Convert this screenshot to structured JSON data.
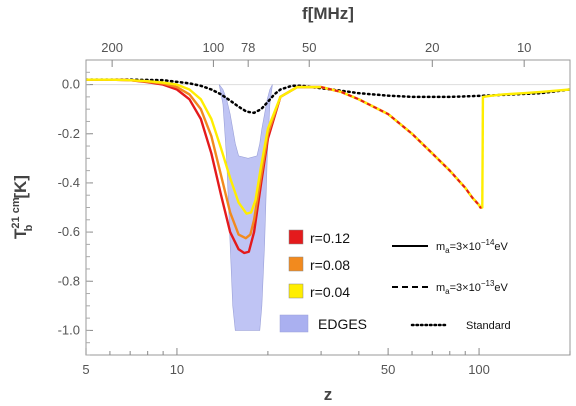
{
  "chart_data": {
    "type": "line",
    "x_scale": "log",
    "xlim": [
      5,
      200
    ],
    "ylim": [
      -1.1,
      0.1
    ],
    "xlabel": "z",
    "ylabel": "T_b^21 cm [K]",
    "ylabel_parts": {
      "base": "T",
      "sub": "b",
      "sup": "21 cm",
      "unit": "[K]"
    },
    "top_axis_label": "f[MHz]",
    "x_ticks": [
      5,
      10,
      50,
      100
    ],
    "x_tick_labels": [
      "5",
      "10",
      "50",
      "100"
    ],
    "y_ticks": [
      0.0,
      -0.2,
      -0.4,
      -0.6,
      -0.8,
      -1.0
    ],
    "y_tick_labels": [
      "0.0",
      "-0.2",
      "-0.4",
      "-0.6",
      "-0.8",
      "-1.0"
    ],
    "top_ticks": [
      200,
      100,
      78,
      50,
      20,
      10
    ],
    "top_tick_labels": [
      "200",
      "100",
      "78",
      "50",
      "20",
      "10"
    ],
    "edges_band": {
      "name": "EDGES",
      "color": "#aab0f0",
      "z": [
        13.8,
        14.2,
        14.6,
        15.0,
        15.3,
        15.6,
        16.0,
        17.2,
        18.4,
        18.8,
        19.1,
        19.5,
        19.9,
        20.3,
        20.7
      ],
      "lower": [
        0.0,
        -0.08,
        -0.3,
        -0.65,
        -0.9,
        -1.0,
        -1.0,
        -1.0,
        -1.0,
        -1.0,
        -0.9,
        -0.65,
        -0.3,
        -0.08,
        0.0
      ],
      "upper": [
        0.0,
        -0.02,
        -0.06,
        -0.12,
        -0.18,
        -0.24,
        -0.29,
        -0.3,
        -0.29,
        -0.24,
        -0.18,
        -0.12,
        -0.06,
        -0.02,
        0.0
      ]
    },
    "series": [
      {
        "name": "r=0.12",
        "color": "#e41a1c",
        "style": "solid",
        "z": [
          5,
          6,
          7,
          8,
          9,
          10,
          11,
          12,
          13,
          14,
          15,
          16,
          16.7,
          17.3,
          18,
          19,
          20,
          22,
          25,
          30,
          35,
          40,
          50,
          60,
          70,
          80,
          90,
          95,
          100,
          101,
          102
        ],
        "y": [
          0.02,
          0.02,
          0.018,
          0.01,
          0.0,
          -0.02,
          -0.06,
          -0.14,
          -0.28,
          -0.45,
          -0.6,
          -0.67,
          -0.685,
          -0.68,
          -0.6,
          -0.4,
          -0.22,
          -0.05,
          -0.01,
          -0.01,
          -0.03,
          -0.06,
          -0.12,
          -0.2,
          -0.28,
          -0.35,
          -0.42,
          -0.46,
          -0.49,
          -0.5,
          -0.5
        ]
      },
      {
        "name": "r=0.08",
        "color": "#f28a1e",
        "style": "solid",
        "z": [
          5,
          6,
          7,
          8,
          9,
          10,
          11,
          12,
          13,
          14,
          15,
          16,
          16.9,
          17.5,
          18,
          19,
          20,
          22,
          25,
          30
        ],
        "y": [
          0.02,
          0.02,
          0.018,
          0.012,
          0.004,
          -0.01,
          -0.04,
          -0.1,
          -0.21,
          -0.37,
          -0.52,
          -0.61,
          -0.625,
          -0.61,
          -0.55,
          -0.37,
          -0.2,
          -0.05,
          -0.01,
          -0.01
        ]
      },
      {
        "name": "r=0.04",
        "color": "#ffee00",
        "style": "solid",
        "z": [
          5,
          6,
          7,
          8,
          9,
          10,
          11,
          12,
          13,
          14,
          15,
          16,
          17,
          17.6,
          18.2,
          19,
          20,
          22,
          25,
          30,
          35,
          40,
          50,
          60,
          70,
          80,
          90,
          95,
          100,
          101,
          102,
          102.5,
          103,
          110,
          120,
          140,
          160,
          200
        ],
        "y": [
          0.02,
          0.02,
          0.018,
          0.014,
          0.008,
          0.0,
          -0.02,
          -0.06,
          -0.14,
          -0.26,
          -0.38,
          -0.48,
          -0.525,
          -0.52,
          -0.47,
          -0.33,
          -0.18,
          -0.05,
          -0.01,
          -0.01,
          -0.03,
          -0.06,
          -0.12,
          -0.2,
          -0.28,
          -0.35,
          -0.42,
          -0.46,
          -0.49,
          -0.5,
          -0.5,
          -0.5,
          -0.05,
          -0.045,
          -0.04,
          -0.035,
          -0.03,
          -0.02
        ]
      },
      {
        "name": "Standard",
        "color": "#000000",
        "style": "dotted",
        "z": [
          5,
          7,
          9,
          11,
          12,
          13,
          14,
          15,
          16,
          17,
          18,
          19,
          20,
          21,
          22,
          24,
          26,
          30,
          35,
          40,
          50,
          60,
          70,
          80,
          90,
          100,
          110,
          130,
          160,
          200
        ],
        "y": [
          0.02,
          0.02,
          0.018,
          0.005,
          -0.005,
          -0.02,
          -0.04,
          -0.065,
          -0.09,
          -0.11,
          -0.115,
          -0.1,
          -0.07,
          -0.04,
          -0.02,
          -0.005,
          -0.005,
          -0.015,
          -0.025,
          -0.035,
          -0.045,
          -0.05,
          -0.05,
          -0.05,
          -0.048,
          -0.046,
          -0.044,
          -0.04,
          -0.035,
          -0.02
        ]
      }
    ],
    "legend_models": [
      {
        "style": "solid",
        "label_base": "m",
        "label_sub": "a",
        "label_eq": "=3×10",
        "label_sup": "−14",
        "label_unit": "eV"
      },
      {
        "style": "dashed",
        "label_base": "m",
        "label_sub": "a",
        "label_eq": "=3×10",
        "label_sup": "−13",
        "label_unit": "eV"
      }
    ]
  }
}
